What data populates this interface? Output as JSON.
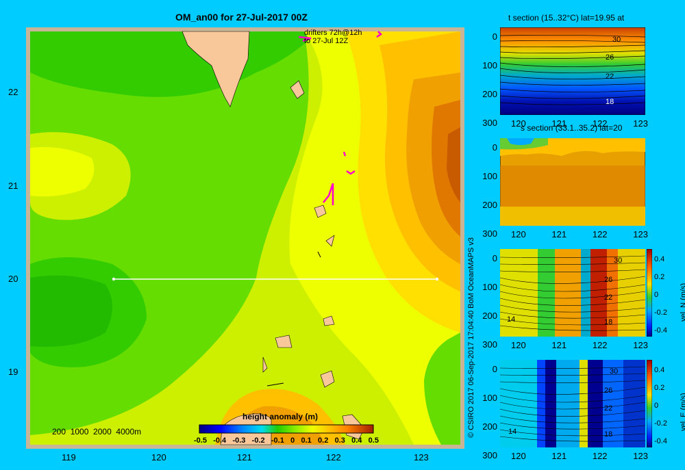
{
  "main_map": {
    "title": "OM_an00 for 27-Jul-2017 00Z",
    "drifters_label_line1": "drifters 72h@12h",
    "drifters_label_line2": "to 27-Jul 12Z",
    "depth_legend": "200  1000  2000  4000m",
    "x_ticks": [
      "119",
      "120",
      "121",
      "122",
      "123"
    ],
    "y_ticks": [
      "22",
      "21",
      "20",
      "19"
    ]
  },
  "colorbar": {
    "title": "height anomaly (m)",
    "labels": [
      "-0.5",
      "-0.4",
      "-0.3",
      "-0.2",
      "-0.1",
      "0",
      "0.1",
      "0.2",
      "0.3",
      "0.4",
      "0.5"
    ]
  },
  "credit": "© CSIRO 2017   06-Sep-2017 17:04:40 BoM OceanMAPS v3",
  "sections": [
    {
      "title": "t section (15..32°C) lat=19.95 at",
      "contour_labels": [
        "30",
        "26",
        "22",
        "18"
      ],
      "colorbar_unit": ""
    },
    {
      "title": "s section (33.1..35.2) lat=20",
      "contour_labels": [],
      "colorbar_unit": ""
    },
    {
      "title": "",
      "contour_labels": [
        "30",
        "26",
        "22",
        "18",
        "14"
      ],
      "colorbar_unit": "vel. N (m/s)",
      "colorbar_ticks": [
        "0.4",
        "0.2",
        "0",
        "-0.2",
        "-0.4"
      ]
    },
    {
      "title": "",
      "contour_labels": [
        "30",
        "26",
        "22",
        "18",
        "14"
      ],
      "colorbar_unit": "vel. E (m/s)",
      "colorbar_ticks": [
        "0.4",
        "0.2",
        "0",
        "-0.2",
        "-0.4"
      ]
    }
  ],
  "section_axes": {
    "x_ticks": [
      "120",
      "121",
      "122",
      "123"
    ],
    "y_ticks": [
      "0",
      "100",
      "200",
      "300"
    ]
  },
  "colors": {
    "background": "#00ccff",
    "land": "#f8c89a",
    "frame": "#c8b496",
    "drifter": "#ff00cc"
  }
}
